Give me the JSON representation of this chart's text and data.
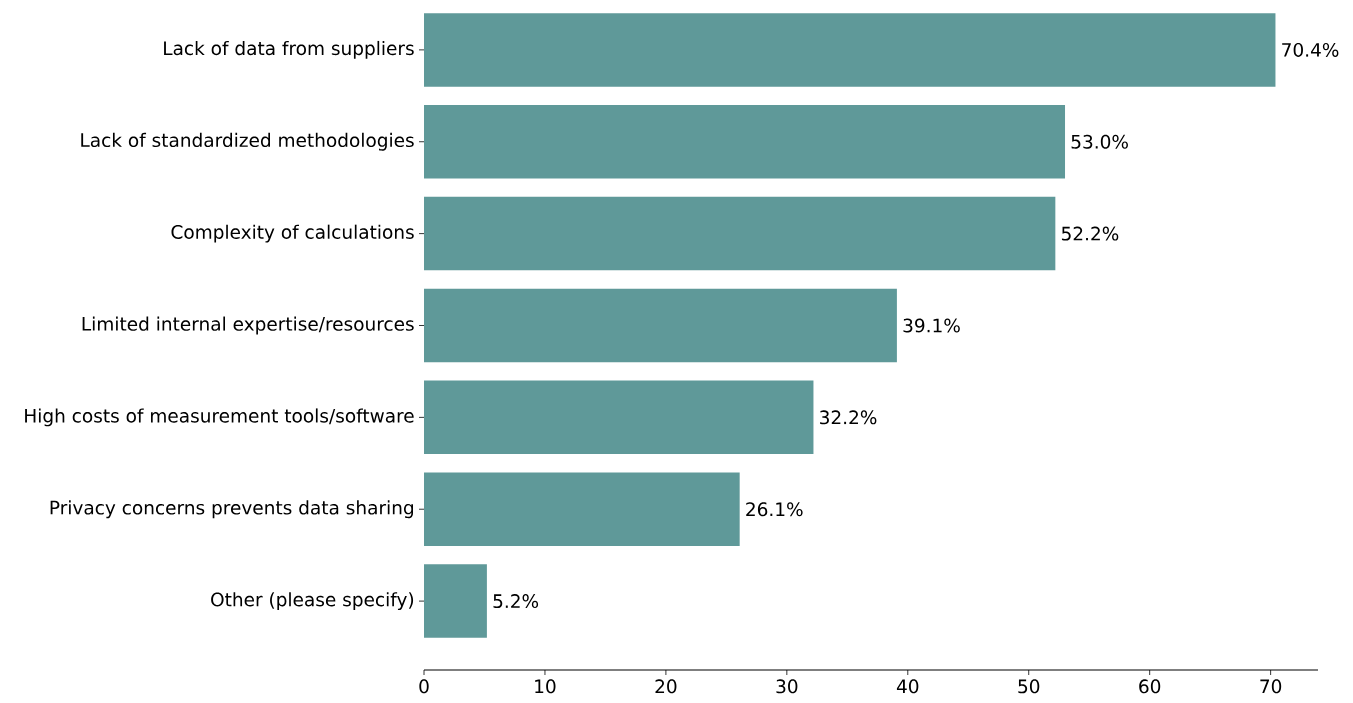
{
  "chart_data": {
    "type": "bar",
    "orientation": "horizontal",
    "categories": [
      "Lack of data from suppliers",
      "Lack of standardized methodologies",
      "Complexity of calculations",
      "Limited internal expertise/resources",
      "High costs of measurement tools/software",
      "Privacy concerns prevents data sharing",
      "Other (please specify)"
    ],
    "values": [
      70.4,
      53.0,
      52.2,
      39.1,
      32.2,
      26.1,
      5.2
    ],
    "value_labels": [
      "70.4%",
      "53.0%",
      "52.2%",
      "39.1%",
      "32.2%",
      "26.1%",
      "5.2%"
    ],
    "color": "#5f9999",
    "xlim": [
      0,
      73.92
    ],
    "xticks": [
      0,
      10,
      20,
      30,
      40,
      50,
      60,
      70
    ],
    "grid": false
  }
}
